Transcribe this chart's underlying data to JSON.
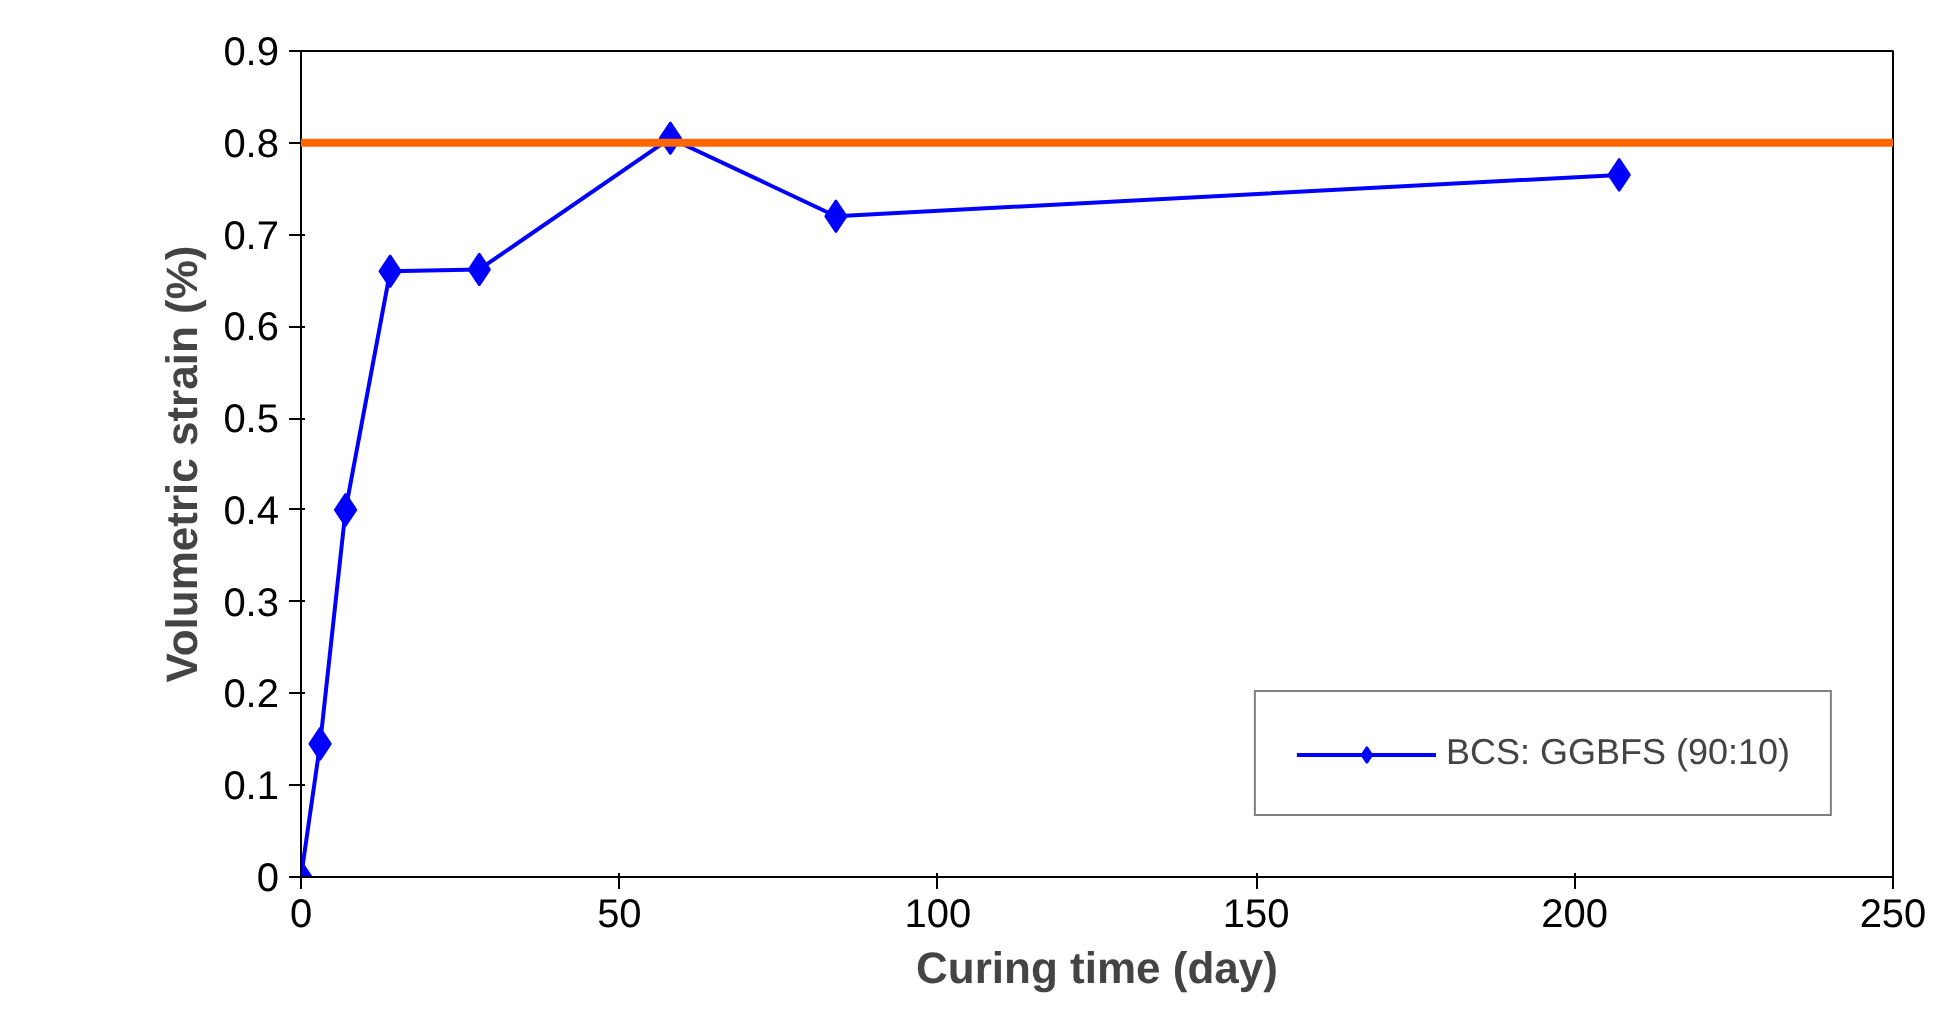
{
  "chart_data": {
    "type": "line",
    "xlabel": "Curing time (day)",
    "ylabel": "Volumetric strain (%)",
    "x": [
      0,
      3,
      7,
      14,
      28,
      58,
      84,
      207
    ],
    "series": [
      {
        "name": "BCS: GGBFS (90:10)",
        "color": "#0000ff",
        "values": [
          0,
          0.145,
          0.4,
          0.66,
          0.662,
          0.805,
          0.72,
          0.765
        ]
      }
    ],
    "xlim": [
      0,
      250
    ],
    "xticks": [
      0,
      50,
      100,
      150,
      200,
      250
    ],
    "ylim": [
      0,
      0.9
    ],
    "yticks": [
      0,
      0.1,
      0.2,
      0.3,
      0.4,
      0.5,
      0.6,
      0.7,
      0.8,
      0.9
    ],
    "ref_lines": [
      {
        "axis": "y",
        "value": 0.8,
        "color": "#ff6600",
        "line_style": "solid"
      }
    ],
    "marker": "diamond",
    "line_style": "solid",
    "grid": false,
    "legend": "bottom right"
  }
}
